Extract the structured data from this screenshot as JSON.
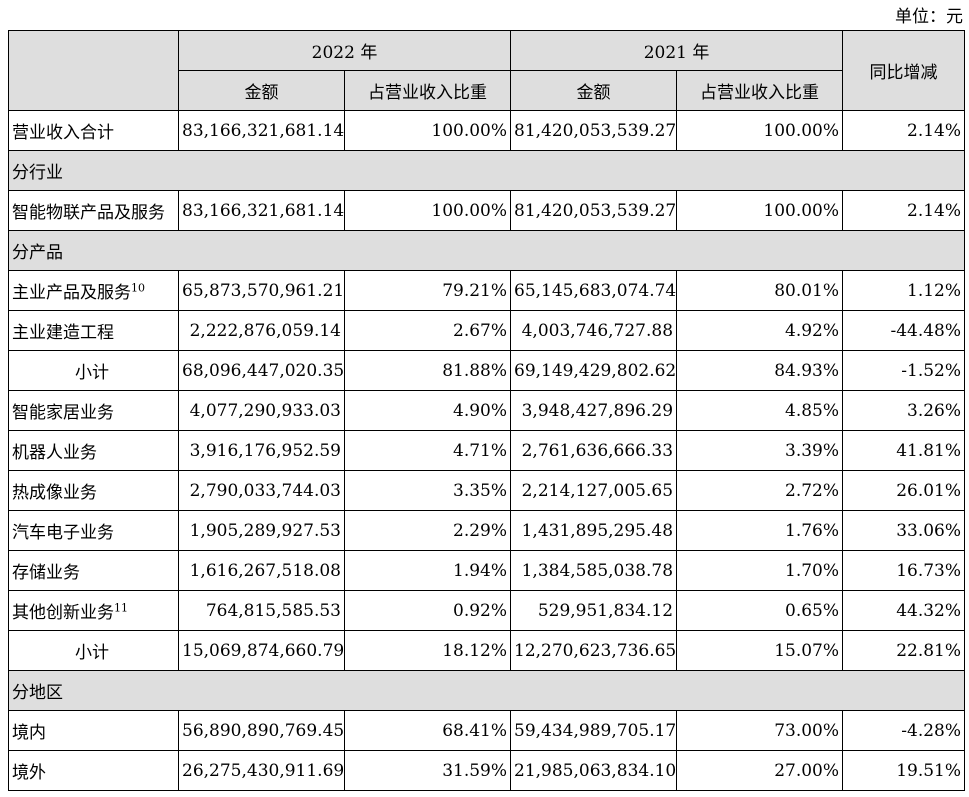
{
  "unit_label": "单位：元",
  "header": {
    "year_2022": "2022 年",
    "year_2021": "2021 年",
    "yoy": "同比增减",
    "amount": "金额",
    "share": "占营业收入比重"
  },
  "rows": {
    "total": {
      "label": "营业收入合计",
      "a22": "83,166,321,681.14",
      "s22": "100.00%",
      "a21": "81,420,053,539.27",
      "s21": "100.00%",
      "yoy": "2.14%"
    },
    "sec_industry": "分行业",
    "iot": {
      "label": "智能物联产品及服务",
      "a22": "83,166,321,681.14",
      "s22": "100.00%",
      "a21": "81,420,053,539.27",
      "s21": "100.00%",
      "yoy": "2.14%"
    },
    "sec_product": "分产品",
    "main": {
      "label": "主业产品及服务",
      "sup": "10",
      "a22": "65,873,570,961.21",
      "s22": "79.21%",
      "a21": "65,145,683,074.74",
      "s21": "80.01%",
      "yoy": "1.12%"
    },
    "construction": {
      "label": "主业建造工程",
      "a22": "2,222,876,059.14",
      "s22": "2.67%",
      "a21": "4,003,746,727.88",
      "s21": "4.92%",
      "yoy": "-44.48%"
    },
    "subtotal1": {
      "label": "小计",
      "a22": "68,096,447,020.35",
      "s22": "81.88%",
      "a21": "69,149,429,802.62",
      "s21": "84.93%",
      "yoy": "-1.52%"
    },
    "smarthome": {
      "label": "智能家居业务",
      "a22": "4,077,290,933.03",
      "s22": "4.90%",
      "a21": "3,948,427,896.29",
      "s21": "4.85%",
      "yoy": "3.26%"
    },
    "robot": {
      "label": "机器人业务",
      "a22": "3,916,176,952.59",
      "s22": "4.71%",
      "a21": "2,761,636,666.33",
      "s21": "3.39%",
      "yoy": "41.81%"
    },
    "thermal": {
      "label": "热成像业务",
      "a22": "2,790,033,744.03",
      "s22": "3.35%",
      "a21": "2,214,127,005.65",
      "s21": "2.72%",
      "yoy": "26.01%"
    },
    "auto": {
      "label": "汽车电子业务",
      "a22": "1,905,289,927.53",
      "s22": "2.29%",
      "a21": "1,431,895,295.48",
      "s21": "1.76%",
      "yoy": "33.06%"
    },
    "storage": {
      "label": "存储业务",
      "a22": "1,616,267,518.08",
      "s22": "1.94%",
      "a21": "1,384,585,038.78",
      "s21": "1.70%",
      "yoy": "16.73%"
    },
    "other": {
      "label": "其他创新业务",
      "sup": "11",
      "a22": "764,815,585.53",
      "s22": "0.92%",
      "a21": "529,951,834.12",
      "s21": "0.65%",
      "yoy": "44.32%"
    },
    "subtotal2": {
      "label": "小计",
      "a22": "15,069,874,660.79",
      "s22": "18.12%",
      "a21": "12,270,623,736.65",
      "s21": "15.07%",
      "yoy": "22.81%"
    },
    "sec_region": "分地区",
    "domestic": {
      "label": "境内",
      "a22": "56,890,890,769.45",
      "s22": "68.41%",
      "a21": "59,434,989,705.17",
      "s21": "73.00%",
      "yoy": "-4.28%"
    },
    "overseas": {
      "label": "境外",
      "a22": "26,275,430,911.69",
      "s22": "31.59%",
      "a21": "21,985,063,834.10",
      "s21": "27.00%",
      "yoy": "19.51%"
    }
  }
}
